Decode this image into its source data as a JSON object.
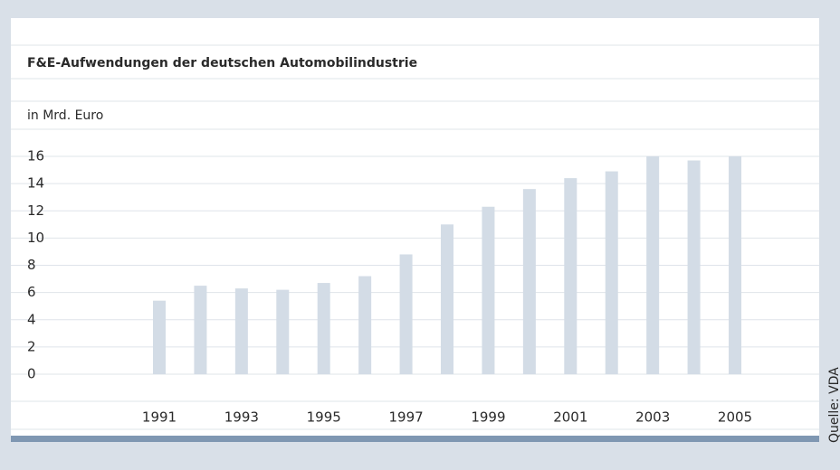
{
  "chart_data": {
    "type": "bar",
    "title": "F&E-Aufwendungen der deutschen Automobilindustrie",
    "ylabel": "in Mrd. Euro",
    "source": "Quelle: VDA",
    "categories": [
      "1991",
      null,
      "1993",
      null,
      "1995",
      null,
      "1997",
      null,
      "1999",
      null,
      "2001",
      null,
      "2003",
      null,
      "2005"
    ],
    "values": [
      5.4,
      6.5,
      6.3,
      6.2,
      6.7,
      7.2,
      8.8,
      11.0,
      12.3,
      13.6,
      14.4,
      14.9,
      16.0,
      15.7,
      16.0
    ],
    "color": "#d3dce6",
    "ylim": [
      0,
      16
    ],
    "yticks": [
      0,
      2,
      4,
      6,
      8,
      10,
      12,
      14,
      16
    ],
    "grid": true
  }
}
